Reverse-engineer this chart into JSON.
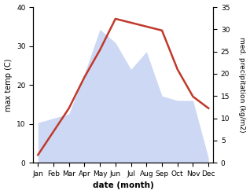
{
  "months": [
    "Jan",
    "Feb",
    "Mar",
    "Apr",
    "May",
    "Jun",
    "Jul",
    "Aug",
    "Sep",
    "Oct",
    "Nov",
    "Dec"
  ],
  "temperature": [
    2,
    8,
    14,
    22,
    29,
    37,
    36,
    35,
    34,
    24,
    17,
    14
  ],
  "precipitation_right": [
    9,
    10,
    11,
    20,
    30,
    27,
    21,
    25,
    15,
    14,
    14,
    1
  ],
  "temp_color": "#c0392b",
  "precip_color_fill": "#b8c8f0",
  "left_ylabel": "max temp (C)",
  "right_ylabel": "med. precipitation (kg/m2)",
  "xlabel": "date (month)",
  "ylim_left": [
    0,
    40
  ],
  "ylim_right": [
    0,
    35
  ],
  "left_yticks": [
    0,
    10,
    20,
    30,
    40
  ],
  "right_yticks": [
    0,
    5,
    10,
    15,
    20,
    25,
    30,
    35
  ]
}
